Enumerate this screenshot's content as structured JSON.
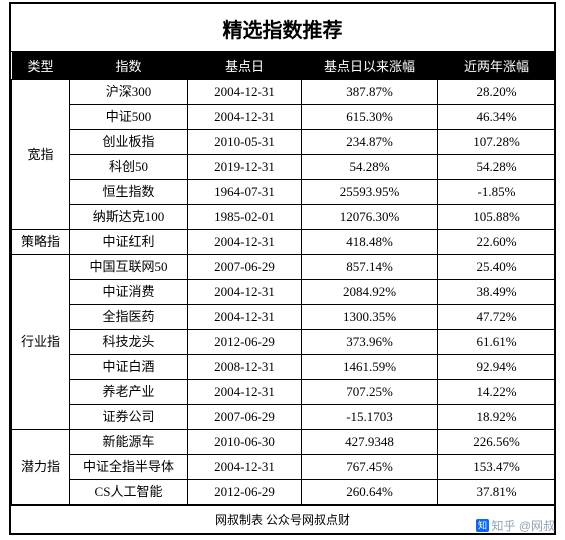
{
  "title": "精选指数推荐",
  "columns": [
    "类型",
    "指数",
    "基点日",
    "基点日以来涨幅",
    "近两年涨幅"
  ],
  "groups": [
    {
      "label": "宽指",
      "rows": [
        {
          "name": "沪深300",
          "date": "2004-12-31",
          "since": "387.87%",
          "two": "28.20%"
        },
        {
          "name": "中证500",
          "date": "2004-12-31",
          "since": "615.30%",
          "two": "46.34%"
        },
        {
          "name": "创业板指",
          "date": "2010-05-31",
          "since": "234.87%",
          "two": "107.28%"
        },
        {
          "name": "科创50",
          "date": "2019-12-31",
          "since": "54.28%",
          "two": "54.28%"
        },
        {
          "name": "恒生指数",
          "date": "1964-07-31",
          "since": "25593.95%",
          "two": "-1.85%"
        },
        {
          "name": "纳斯达克100",
          "date": "1985-02-01",
          "since": "12076.30%",
          "two": "105.88%"
        }
      ]
    },
    {
      "label": "策略指",
      "rows": [
        {
          "name": "中证红利",
          "date": "2004-12-31",
          "since": "418.48%",
          "two": "22.60%"
        }
      ]
    },
    {
      "label": "行业指",
      "rows": [
        {
          "name": "中国互联网50",
          "date": "2007-06-29",
          "since": "857.14%",
          "two": "25.40%"
        },
        {
          "name": "中证消费",
          "date": "2004-12-31",
          "since": "2084.92%",
          "two": "38.49%"
        },
        {
          "name": "全指医药",
          "date": "2004-12-31",
          "since": "1300.35%",
          "two": "47.72%"
        },
        {
          "name": "科技龙头",
          "date": "2012-06-29",
          "since": "373.96%",
          "two": "61.61%"
        },
        {
          "name": "中证白酒",
          "date": "2008-12-31",
          "since": "1461.59%",
          "two": "92.94%"
        },
        {
          "name": "养老产业",
          "date": "2004-12-31",
          "since": "707.25%",
          "two": "14.22%"
        },
        {
          "name": "证券公司",
          "date": "2007-06-29",
          "since": "-15.1703",
          "two": "18.92%"
        }
      ]
    },
    {
      "label": "潜力指",
      "rows": [
        {
          "name": "新能源车",
          "date": "2010-06-30",
          "since": "427.9348",
          "two": "226.56%"
        },
        {
          "name": "中证全指半导体",
          "date": "2004-12-31",
          "since": "767.45%",
          "two": "153.47%"
        },
        {
          "name": "CS人工智能",
          "date": "2012-06-29",
          "since": "260.64%",
          "two": "37.81%"
        }
      ]
    }
  ],
  "footer": "网叔制表 公众号网叔点财",
  "watermark_site": "知乎",
  "watermark_user": "@网叔"
}
